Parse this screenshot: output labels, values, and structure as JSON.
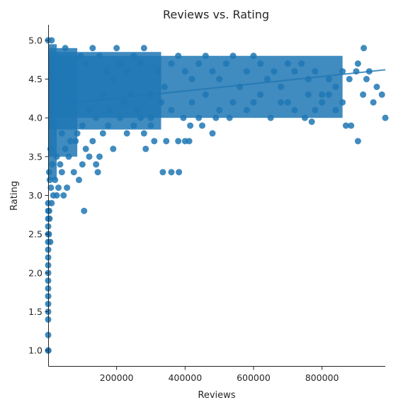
{
  "chart_data": {
    "type": "scatter",
    "title": "Reviews vs. Rating",
    "xlabel": "Reviews",
    "ylabel": "Rating",
    "xlim": [
      0,
      985000
    ],
    "ylim": [
      0.8,
      5.2
    ],
    "xticks": [
      200000,
      400000,
      600000,
      800000
    ],
    "xtick_labels": [
      "200000",
      "400000",
      "600000",
      "800000"
    ],
    "yticks": [
      1.0,
      1.5,
      2.0,
      2.5,
      3.0,
      3.5,
      4.0,
      4.5,
      5.0
    ],
    "ytick_labels": [
      "1.0",
      "1.5",
      "2.0",
      "2.5",
      "3.0",
      "3.5",
      "4.0",
      "4.5",
      "5.0"
    ],
    "grid": false,
    "color": "#1f77b4",
    "regression_line": {
      "x": [
        0,
        985000
      ],
      "y": [
        4.16,
        4.62
      ]
    },
    "points": [
      {
        "x": 0,
        "y": 1.0
      },
      {
        "x": 500,
        "y": 1.0
      },
      {
        "x": 0,
        "y": 1.2
      },
      {
        "x": 0,
        "y": 1.4
      },
      {
        "x": 0,
        "y": 1.5
      },
      {
        "x": 0,
        "y": 1.6
      },
      {
        "x": 0,
        "y": 1.7
      },
      {
        "x": 0,
        "y": 1.8
      },
      {
        "x": 0,
        "y": 1.9
      },
      {
        "x": 0,
        "y": 2.0
      },
      {
        "x": 0,
        "y": 2.1
      },
      {
        "x": 0,
        "y": 2.2
      },
      {
        "x": 0,
        "y": 2.3
      },
      {
        "x": 0,
        "y": 2.4
      },
      {
        "x": 0,
        "y": 2.5
      },
      {
        "x": 0,
        "y": 2.6
      },
      {
        "x": 0,
        "y": 2.7
      },
      {
        "x": 0,
        "y": 2.8
      },
      {
        "x": 0,
        "y": 2.9
      },
      {
        "x": 2000,
        "y": 2.5
      },
      {
        "x": 4000,
        "y": 2.7
      },
      {
        "x": 6000,
        "y": 2.4
      },
      {
        "x": 3000,
        "y": 2.8
      },
      {
        "x": 10000,
        "y": 2.9
      },
      {
        "x": 15000,
        "y": 3.0
      },
      {
        "x": 25000,
        "y": 3.0
      },
      {
        "x": 8000,
        "y": 3.1
      },
      {
        "x": 20000,
        "y": 3.2
      },
      {
        "x": 30000,
        "y": 3.1
      },
      {
        "x": 40000,
        "y": 3.3
      },
      {
        "x": 45000,
        "y": 3.0
      },
      {
        "x": 55000,
        "y": 3.1
      },
      {
        "x": 35000,
        "y": 3.4
      },
      {
        "x": 60000,
        "y": 3.5
      },
      {
        "x": 75000,
        "y": 3.3
      },
      {
        "x": 90000,
        "y": 3.2
      },
      {
        "x": 100000,
        "y": 3.4
      },
      {
        "x": 105000,
        "y": 2.8
      },
      {
        "x": 120000,
        "y": 3.5
      },
      {
        "x": 140000,
        "y": 3.4
      },
      {
        "x": 150000,
        "y": 3.5
      },
      {
        "x": 145000,
        "y": 3.3
      },
      {
        "x": 80000,
        "y": 3.7
      },
      {
        "x": 110000,
        "y": 3.6
      },
      {
        "x": 130000,
        "y": 3.7
      },
      {
        "x": 160000,
        "y": 3.8
      },
      {
        "x": 175000,
        "y": 3.9
      },
      {
        "x": 190000,
        "y": 3.6
      },
      {
        "x": 210000,
        "y": 4.0
      },
      {
        "x": 230000,
        "y": 3.8
      },
      {
        "x": 250000,
        "y": 3.9
      },
      {
        "x": 280000,
        "y": 3.8
      },
      {
        "x": 285000,
        "y": 3.6
      },
      {
        "x": 300000,
        "y": 3.9
      },
      {
        "x": 310000,
        "y": 3.7
      },
      {
        "x": 335000,
        "y": 3.3
      },
      {
        "x": 345000,
        "y": 3.7
      },
      {
        "x": 360000,
        "y": 3.3
      },
      {
        "x": 382000,
        "y": 3.3
      },
      {
        "x": 380000,
        "y": 3.7
      },
      {
        "x": 400000,
        "y": 3.7
      },
      {
        "x": 412000,
        "y": 3.7
      },
      {
        "x": 415000,
        "y": 3.9
      },
      {
        "x": 450000,
        "y": 3.9
      },
      {
        "x": 480000,
        "y": 3.8
      },
      {
        "x": 490000,
        "y": 4.0
      },
      {
        "x": 530000,
        "y": 4.0
      },
      {
        "x": 580000,
        "y": 4.1
      },
      {
        "x": 600000,
        "y": 4.2
      },
      {
        "x": 650000,
        "y": 4.0
      },
      {
        "x": 700000,
        "y": 4.2
      },
      {
        "x": 720000,
        "y": 4.1
      },
      {
        "x": 760000,
        "y": 4.3
      },
      {
        "x": 780000,
        "y": 4.1
      },
      {
        "x": 800000,
        "y": 4.2
      },
      {
        "x": 840000,
        "y": 4.1
      },
      {
        "x": 860000,
        "y": 4.2
      },
      {
        "x": 870000,
        "y": 3.9
      },
      {
        "x": 885000,
        "y": 3.9
      },
      {
        "x": 905000,
        "y": 3.7
      },
      {
        "x": 920000,
        "y": 4.3
      },
      {
        "x": 950000,
        "y": 4.2
      },
      {
        "x": 985000,
        "y": 4.0
      },
      {
        "x": 975000,
        "y": 4.3
      },
      {
        "x": 960000,
        "y": 4.4
      },
      {
        "x": 930000,
        "y": 4.5
      },
      {
        "x": 900000,
        "y": 4.6
      },
      {
        "x": 905000,
        "y": 4.7
      },
      {
        "x": 922000,
        "y": 4.9
      },
      {
        "x": 938000,
        "y": 4.6
      },
      {
        "x": 880000,
        "y": 4.5
      },
      {
        "x": 860000,
        "y": 4.6
      },
      {
        "x": 840000,
        "y": 4.4
      },
      {
        "x": 820000,
        "y": 4.5
      },
      {
        "x": 800000,
        "y": 4.3
      },
      {
        "x": 780000,
        "y": 4.6
      },
      {
        "x": 760000,
        "y": 4.5
      },
      {
        "x": 740000,
        "y": 4.7
      },
      {
        "x": 720000,
        "y": 4.6
      },
      {
        "x": 700000,
        "y": 4.7
      },
      {
        "x": 680000,
        "y": 4.4
      },
      {
        "x": 660000,
        "y": 4.6
      },
      {
        "x": 640000,
        "y": 4.5
      },
      {
        "x": 620000,
        "y": 4.7
      },
      {
        "x": 600000,
        "y": 4.8
      },
      {
        "x": 580000,
        "y": 4.6
      },
      {
        "x": 560000,
        "y": 4.4
      },
      {
        "x": 540000,
        "y": 4.8
      },
      {
        "x": 520000,
        "y": 4.7
      },
      {
        "x": 500000,
        "y": 4.5
      },
      {
        "x": 480000,
        "y": 4.6
      },
      {
        "x": 460000,
        "y": 4.8
      },
      {
        "x": 440000,
        "y": 4.7
      },
      {
        "x": 420000,
        "y": 4.5
      },
      {
        "x": 400000,
        "y": 4.6
      },
      {
        "x": 380000,
        "y": 4.8
      },
      {
        "x": 360000,
        "y": 4.7
      },
      {
        "x": 340000,
        "y": 4.4
      },
      {
        "x": 320000,
        "y": 4.6
      },
      {
        "x": 300000,
        "y": 4.3
      },
      {
        "x": 280000,
        "y": 4.9
      },
      {
        "x": 270000,
        "y": 4.7
      },
      {
        "x": 250000,
        "y": 4.8
      },
      {
        "x": 230000,
        "y": 4.6
      },
      {
        "x": 210000,
        "y": 4.7
      },
      {
        "x": 200000,
        "y": 4.9
      },
      {
        "x": 190000,
        "y": 4.5
      },
      {
        "x": 170000,
        "y": 4.6
      },
      {
        "x": 150000,
        "y": 4.8
      },
      {
        "x": 130000,
        "y": 4.9
      },
      {
        "x": 110000,
        "y": 4.7
      },
      {
        "x": 95000,
        "y": 4.8
      },
      {
        "x": 70000,
        "y": 4.6
      },
      {
        "x": 50000,
        "y": 4.9
      },
      {
        "x": 30000,
        "y": 4.7
      },
      {
        "x": 10000,
        "y": 5.0
      },
      {
        "x": 0,
        "y": 5.0
      },
      {
        "x": 420000,
        "y": 4.2
      },
      {
        "x": 460000,
        "y": 4.3
      },
      {
        "x": 540000,
        "y": 4.2
      },
      {
        "x": 620000,
        "y": 4.3
      },
      {
        "x": 680000,
        "y": 4.2
      },
      {
        "x": 360000,
        "y": 4.1
      },
      {
        "x": 330000,
        "y": 4.2
      },
      {
        "x": 260000,
        "y": 4.1
      },
      {
        "x": 240000,
        "y": 4.3
      },
      {
        "x": 220000,
        "y": 4.2
      },
      {
        "x": 180000,
        "y": 4.1
      },
      {
        "x": 160000,
        "y": 4.3
      },
      {
        "x": 140000,
        "y": 4.0
      },
      {
        "x": 120000,
        "y": 4.1
      },
      {
        "x": 100000,
        "y": 3.9
      },
      {
        "x": 85000,
        "y": 3.8
      },
      {
        "x": 65000,
        "y": 3.7
      },
      {
        "x": 50000,
        "y": 3.6
      },
      {
        "x": 40000,
        "y": 3.8
      },
      {
        "x": 25000,
        "y": 3.5
      },
      {
        "x": 18000,
        "y": 3.9
      },
      {
        "x": 12000,
        "y": 3.4
      },
      {
        "x": 7000,
        "y": 3.6
      },
      {
        "x": 5000,
        "y": 3.2
      },
      {
        "x": 3000,
        "y": 3.3
      },
      {
        "x": 750000,
        "y": 4.0
      },
      {
        "x": 770000,
        "y": 3.95
      },
      {
        "x": 500000,
        "y": 4.1
      },
      {
        "x": 440000,
        "y": 4.0
      },
      {
        "x": 395000,
        "y": 4.0
      },
      {
        "x": 300000,
        "y": 4.0
      },
      {
        "x": 270000,
        "y": 4.0
      },
      {
        "x": 820000,
        "y": 4.3
      }
    ],
    "bands": [
      {
        "y_min": 4.0,
        "y_max": 4.8,
        "x_max": 860000
      },
      {
        "y_min": 3.85,
        "y_max": 4.85,
        "x_max": 330000
      },
      {
        "y_min": 3.5,
        "y_max": 4.9,
        "x_max": 85000
      },
      {
        "y_min": 3.2,
        "y_max": 4.95,
        "x_max": 25000
      }
    ]
  }
}
